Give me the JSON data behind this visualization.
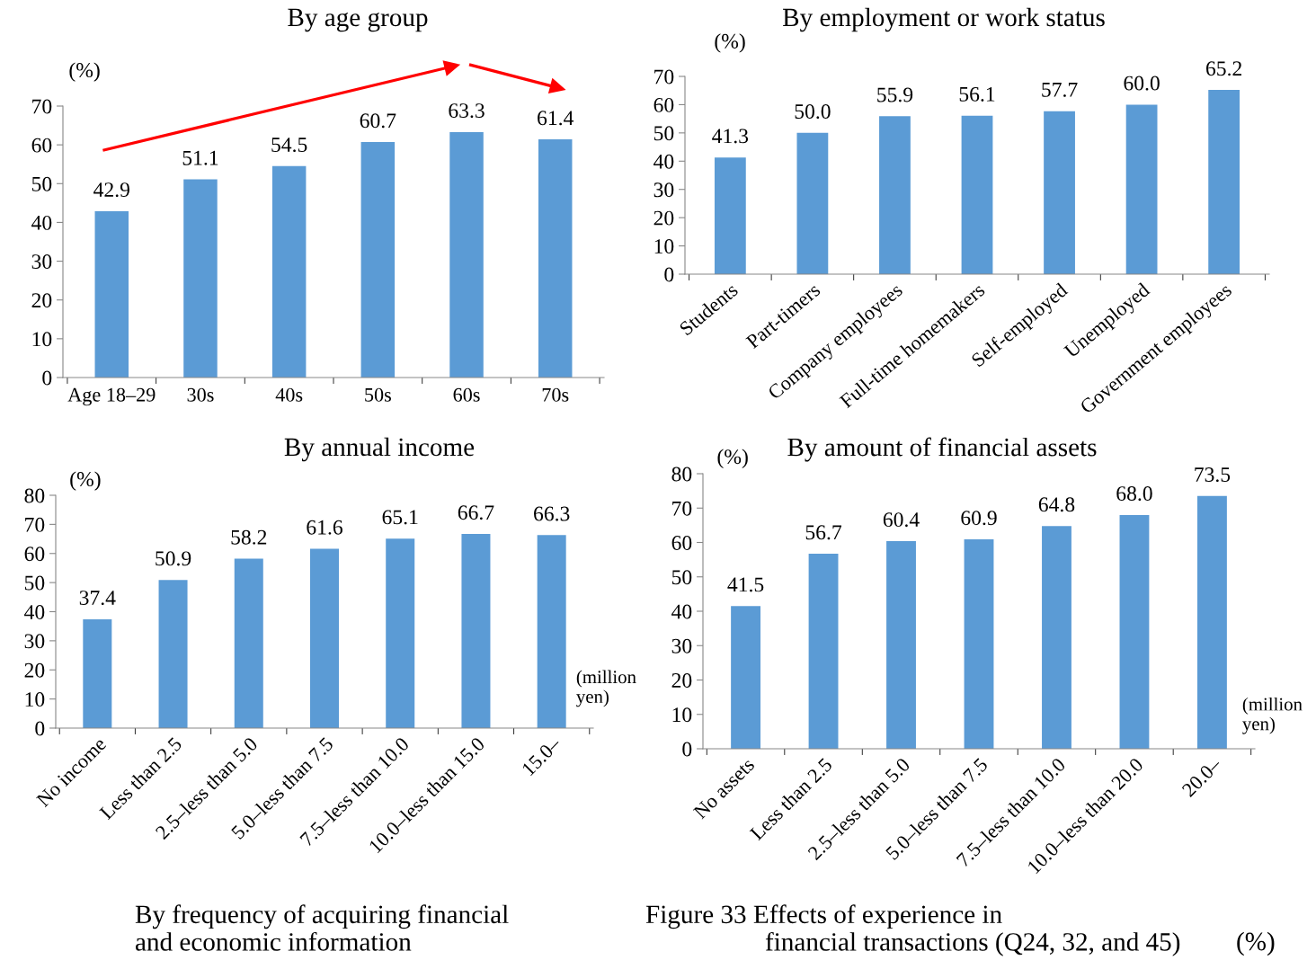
{
  "chart_data": [
    {
      "type": "bar",
      "title": "By age group",
      "ylabel": "(%)",
      "categories": [
        "Age 18–29",
        "30s",
        "40s",
        "50s",
        "60s",
        "70s"
      ],
      "values": [
        42.9,
        51.1,
        54.5,
        60.7,
        63.3,
        61.4
      ],
      "value_labels": [
        "42.9",
        "51.1",
        "54.5",
        "60.7",
        "63.3",
        "61.4"
      ],
      "color": "#5b9bd5",
      "ylim": [
        0,
        70
      ],
      "yticks": [
        0,
        10,
        20,
        30,
        40,
        50,
        60,
        70
      ],
      "grid": false,
      "legend": false
    },
    {
      "type": "bar",
      "title": "By employment or work status",
      "ylabel": "(%)",
      "categories": [
        "Students",
        "Part-timers",
        "Company employees",
        "Full-time homemakers",
        "Self-employed",
        "Unemployed",
        "Government employees"
      ],
      "values": [
        41.3,
        50.0,
        55.9,
        56.1,
        57.7,
        60.0,
        65.2
      ],
      "value_labels": [
        "41.3",
        "50.0",
        "55.9",
        "56.1",
        "57.7",
        "60.0",
        "65.2"
      ],
      "color": "#5b9bd5",
      "ylim": [
        0,
        70
      ],
      "yticks": [
        0,
        10,
        20,
        30,
        40,
        50,
        60,
        70
      ],
      "grid": false,
      "legend": false
    },
    {
      "type": "bar",
      "title": "By annual income",
      "ylabel": "(%)",
      "xlabel": "(million yen)",
      "categories": [
        "No income",
        "Less than 2.5",
        "2.5–less than 5.0",
        "5.0–less than 7.5",
        "7.5–less than 10.0",
        "10.0–less than 15.0",
        "15.0–"
      ],
      "values": [
        37.4,
        50.9,
        58.2,
        61.6,
        65.1,
        66.7,
        66.3
      ],
      "value_labels": [
        "37.4",
        "50.9",
        "58.2",
        "61.6",
        "65.1",
        "66.7",
        "66.3"
      ],
      "color": "#5b9bd5",
      "ylim": [
        0,
        80
      ],
      "yticks": [
        0,
        10,
        20,
        30,
        40,
        50,
        60,
        70,
        80
      ],
      "grid": false,
      "legend": false,
      "annotations": [
        "By frequency of acquiring financial and economic information"
      ]
    },
    {
      "type": "bar",
      "title": "By amount of financial assets",
      "ylabel": "(%)",
      "xlabel": "(million yen)",
      "categories": [
        "No assets",
        "Less than 2.5",
        "2.5–less than 5.0",
        "5.0–less than 7.5",
        "7.5–less than 10.0",
        "10.0–less than 20.0",
        "20.0–"
      ],
      "values": [
        41.5,
        56.7,
        60.4,
        60.9,
        64.8,
        68.0,
        73.5
      ],
      "value_labels": [
        "41.5",
        "56.7",
        "60.4",
        "60.9",
        "64.8",
        "68.0",
        "73.5"
      ],
      "color": "#5b9bd5",
      "ylim": [
        0,
        80
      ],
      "yticks": [
        0,
        10,
        20,
        30,
        40,
        50,
        60,
        70,
        80
      ],
      "grid": false,
      "legend": false,
      "annotations": [
        "Figure 33 Effects of experience in financial transactions (Q24, 32, and 45)",
        "(%)"
      ]
    }
  ]
}
